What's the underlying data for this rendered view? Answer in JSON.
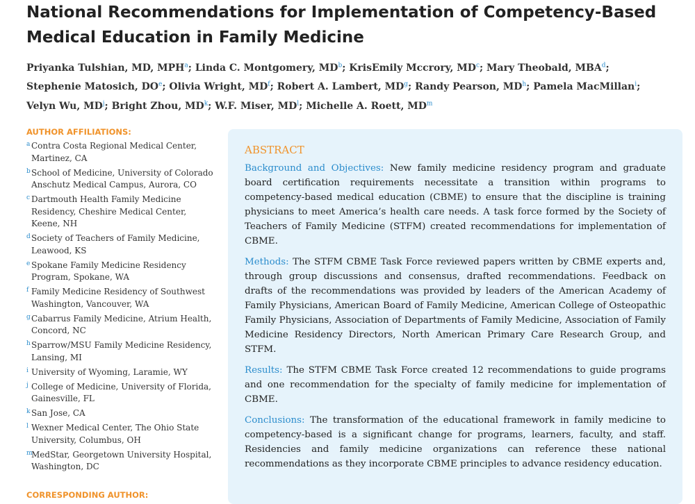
{
  "title": "National Recommendations for Implementation of Competency-Based Medical Education in Family Medicine",
  "authors": [
    {
      "name": "Priyanka Tulshian, MD, MPH",
      "affiliation": "a",
      "separator": ";"
    },
    {
      "name": "Linda C. Montgomery, MD",
      "affiliation": "b",
      "separator": ";"
    },
    {
      "name": "KrisEmily Mccrory, MD",
      "affiliation": "c",
      "separator": ";"
    },
    {
      "name": "Mary Theobald, MBA",
      "affiliation": "d",
      "separator": ";"
    },
    {
      "name": "Stephenie Matosich, DO",
      "affiliation": "e",
      "separator": ";"
    },
    {
      "name": "Olivia Wright, MD",
      "affiliation": "f",
      "separator": ";"
    },
    {
      "name": "Robert A. Lambert, MD",
      "affiliation": "g",
      "separator": ";"
    },
    {
      "name": "Randy Pearson, MD",
      "affiliation": "h",
      "separator": ";"
    },
    {
      "name": "Pamela MacMillan",
      "affiliation": "i",
      "separator": ";"
    },
    {
      "name": "Velyn Wu, MD",
      "affiliation": "j",
      "separator": ";"
    },
    {
      "name": "Bright Zhou, MD",
      "affiliation": "k",
      "separator": ";"
    },
    {
      "name": "W.F. Miser, MD",
      "affiliation": "l",
      "separator": ";"
    },
    {
      "name": "Michelle A. Roett, MD",
      "affiliation": "m"
    }
  ],
  "affiliations_heading": "AUTHOR AFFILIATIONS:",
  "affiliations": [
    {
      "letter": "a",
      "text": "Contra Costa Regional Medical Center, Martinez, CA"
    },
    {
      "letter": "b",
      "text": "School of Medicine, University of Colorado Anschutz Medical Campus, Aurora, CO"
    },
    {
      "letter": "c",
      "text": "Dartmouth Health Family Medicine Residency, Cheshire Medical Center, Keene, NH"
    },
    {
      "letter": "d",
      "text": "Society of Teachers of Family Medicine, Leawood, KS"
    },
    {
      "letter": "e",
      "text": "Spokane Family Medicine Residency Program, Spokane, WA"
    },
    {
      "letter": "f",
      "text": "Family Medicine Residency of Southwest Washington, Vancouver, WA"
    },
    {
      "letter": "g",
      "text": "Cabarrus Family Medicine, Atrium Health, Concord, NC"
    },
    {
      "letter": "h",
      "text": "Sparrow/MSU Family Medicine Residency, Lansing, MI"
    },
    {
      "letter": "i",
      "text": "University of Wyoming, Laramie, WY"
    },
    {
      "letter": "j",
      "text": "College of Medicine, University of Florida, Gainesville, FL"
    },
    {
      "letter": "k",
      "text": "San Jose, CA"
    },
    {
      "letter": "l",
      "text": "Wexner Medical Center, The Ohio State University, Columbus, OH"
    },
    {
      "letter": "m",
      "text": "MedStar, Georgetown University Hospital, Washington, DC"
    }
  ],
  "corresponding_author_heading": "CORRESPONDING AUTHOR:",
  "abstract": {
    "heading": "ABSTRACT",
    "sections": [
      {
        "label": "Background and Objectives:",
        "text": "New family medicine residency program and graduate board certification requirements necessitate a transition within programs to competency-based medical education (CBME) to ensure that the discipline is training physicians to meet America’s health care needs. A task force formed by the Society of Teachers of Family Medicine (STFM) created recommendations for implementation of CBME."
      },
      {
        "label": "Methods:",
        "text": "The STFM CBME Task Force reviewed papers written by CBME experts and, through group discussions and consensus, drafted recommendations. Feedback on drafts of the recommendations was provided by leaders of the American Academy of Family Physicians, American Board of Family Medicine, American College of Osteopathic Family Physicians, Association of Departments of Family Medicine, Association of Family Medicine Residency Directors, North American Primary Care Research Group, and STFM."
      },
      {
        "label": "Results:",
        "text": "The STFM CBME Task Force created 12 recommendations to guide programs and one recommendation for the specialty of family medicine for implementation of CBME."
      },
      {
        "label": "Conclusions:",
        "text": "The transformation of the educational framework in family medicine to competency-based is a significant change for programs, learners, faculty, and staff. Residencies and family medicine organizations can reference these national recommendations as they incorporate CBME principles to advance residency education."
      }
    ]
  }
}
